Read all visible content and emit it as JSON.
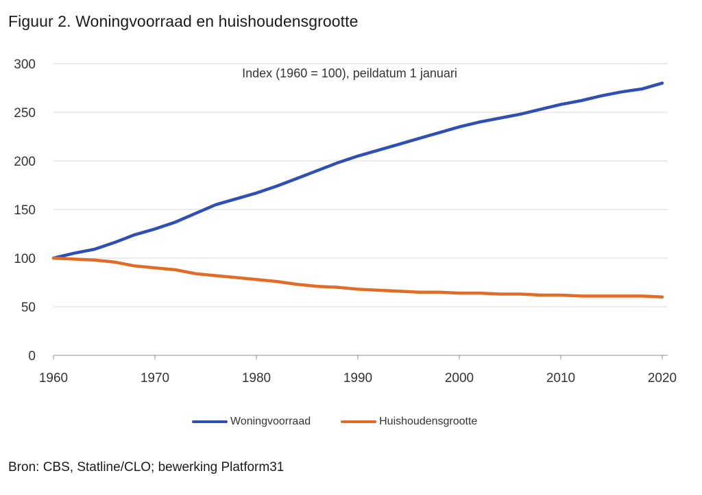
{
  "figure": {
    "title": "Figuur 2. Woningvoorraad en huishoudensgrootte",
    "source": "Bron: CBS, Statline/CLO; bewerking Platform31"
  },
  "colors": {
    "woningvoorraad": "#2f4fb5",
    "huishoudensgrootte": "#e26b25",
    "grid": "#d9d9d9",
    "axis": "#8c8c8c",
    "tick_text": "#333333"
  },
  "chart_data": {
    "type": "line",
    "title": "Figuur 2. Woningvoorraad en huishoudensgrootte",
    "annotation": "Index (1960 = 100), peildatum 1 januari",
    "xlabel": "",
    "ylabel": "",
    "xlim": [
      1960,
      2020
    ],
    "ylim": [
      0,
      300
    ],
    "x_ticks": [
      1960,
      1970,
      1980,
      1990,
      2000,
      2010,
      2020
    ],
    "y_ticks": [
      0,
      50,
      100,
      150,
      200,
      250,
      300
    ],
    "grid": true,
    "legend_position": "bottom",
    "x": [
      1960,
      1962,
      1964,
      1966,
      1968,
      1970,
      1972,
      1974,
      1976,
      1978,
      1980,
      1982,
      1984,
      1986,
      1988,
      1990,
      1992,
      1994,
      1996,
      1998,
      2000,
      2002,
      2004,
      2006,
      2008,
      2010,
      2012,
      2014,
      2016,
      2018,
      2020
    ],
    "series": [
      {
        "name": "Woningvoorraad",
        "values": [
          100,
          105,
          109,
          116,
          124,
          130,
          137,
          146,
          155,
          161,
          167,
          174,
          182,
          190,
          198,
          205,
          211,
          217,
          223,
          229,
          235,
          240,
          244,
          248,
          253,
          258,
          262,
          267,
          271,
          274,
          280
        ]
      },
      {
        "name": "Huishoudensgrootte",
        "values": [
          100,
          99,
          98,
          96,
          92,
          90,
          88,
          84,
          82,
          80,
          78,
          76,
          73,
          71,
          70,
          68,
          67,
          66,
          65,
          65,
          64,
          64,
          63,
          63,
          62,
          62,
          61,
          61,
          61,
          61,
          60
        ]
      }
    ]
  }
}
